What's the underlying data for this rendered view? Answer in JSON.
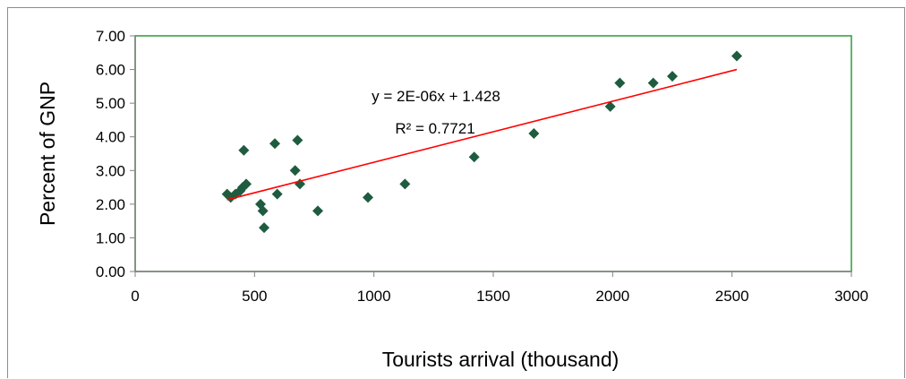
{
  "chart_data": {
    "type": "scatter",
    "title": "",
    "xlabel": "Tourists arrival (thousand)",
    "ylabel": "Percent of GNP",
    "xlim": [
      0,
      3000
    ],
    "ylim": [
      0,
      7
    ],
    "x_ticks": [
      "0",
      "500",
      "1000",
      "1500",
      "2000",
      "2500",
      "3000"
    ],
    "y_ticks": [
      "0.00",
      "1.00",
      "2.00",
      "3.00",
      "4.00",
      "5.00",
      "6.00",
      "7.00"
    ],
    "grid": false,
    "legend": "none",
    "points": [
      {
        "x": 385,
        "y": 2.3
      },
      {
        "x": 400,
        "y": 2.2
      },
      {
        "x": 420,
        "y": 2.3
      },
      {
        "x": 440,
        "y": 2.4
      },
      {
        "x": 450,
        "y": 2.5
      },
      {
        "x": 455,
        "y": 3.6
      },
      {
        "x": 465,
        "y": 2.6
      },
      {
        "x": 525,
        "y": 2.0
      },
      {
        "x": 535,
        "y": 1.8
      },
      {
        "x": 540,
        "y": 1.3
      },
      {
        "x": 585,
        "y": 3.8
      },
      {
        "x": 595,
        "y": 2.3
      },
      {
        "x": 670,
        "y": 3.0
      },
      {
        "x": 680,
        "y": 3.9
      },
      {
        "x": 690,
        "y": 2.6
      },
      {
        "x": 765,
        "y": 1.8
      },
      {
        "x": 975,
        "y": 2.2
      },
      {
        "x": 1130,
        "y": 2.6
      },
      {
        "x": 1420,
        "y": 3.4
      },
      {
        "x": 1670,
        "y": 4.1
      },
      {
        "x": 1990,
        "y": 4.9
      },
      {
        "x": 2030,
        "y": 5.6
      },
      {
        "x": 2170,
        "y": 5.6
      },
      {
        "x": 2250,
        "y": 5.8
      },
      {
        "x": 2520,
        "y": 6.4
      }
    ],
    "trendline": {
      "type": "linear",
      "from": {
        "x": 385,
        "y": 2.13
      },
      "to": {
        "x": 2520,
        "y": 6.0
      },
      "equation": "y = 2E-06x + 1.428",
      "r_squared": "R² = 0.7721"
    },
    "colors": {
      "marker": "#1f5c3f",
      "trendline": "#ff0000",
      "plot_border": "#2e9a3a",
      "axis": "#808080"
    }
  }
}
